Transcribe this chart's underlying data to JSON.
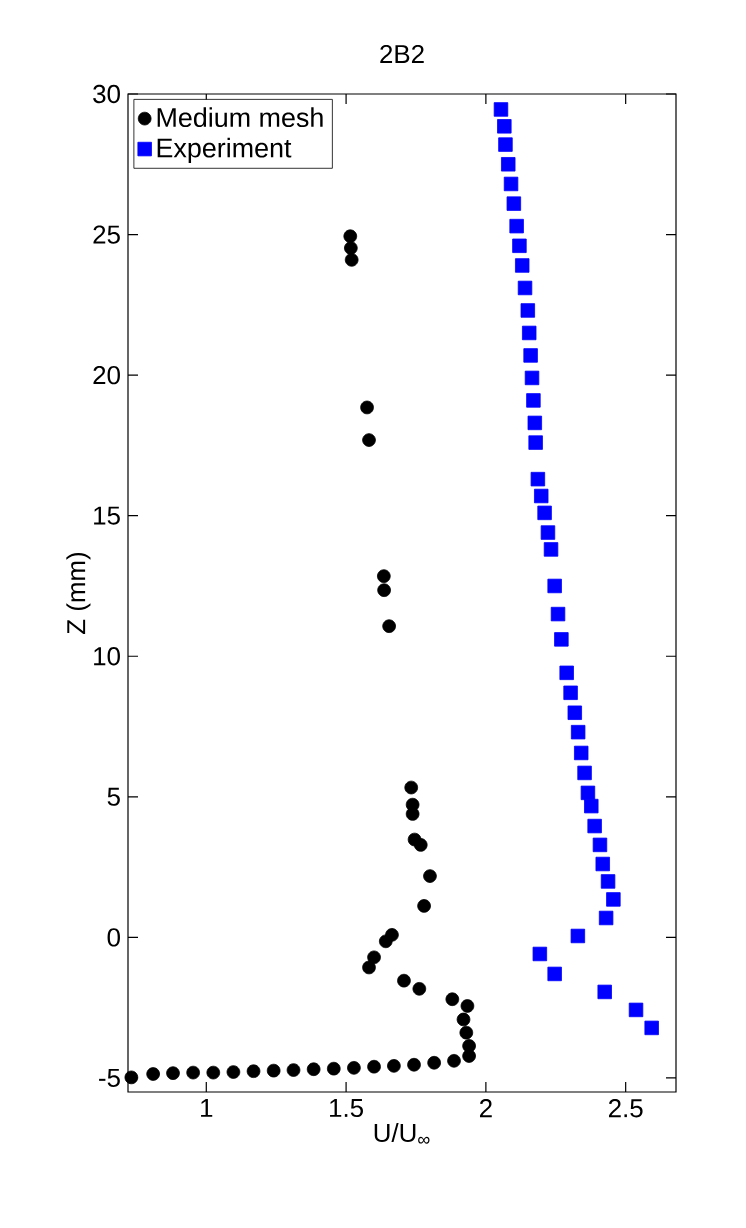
{
  "chart_data": {
    "type": "scatter",
    "title": "2B2",
    "xlabel": "U/U$_{∞}$",
    "ylabel": "Z (mm)",
    "xlim": [
      0.72,
      2.68
    ],
    "ylim": [
      -5.5,
      30
    ],
    "xticks": [
      1,
      1.5,
      2,
      2.5
    ],
    "yticks": [
      -5,
      0,
      5,
      10,
      15,
      20,
      25,
      30
    ],
    "grid": false,
    "legend": "top left",
    "series": [
      {
        "name": "Medium mesh",
        "color": "#000000",
        "marker": "circle",
        "x": [
          1.515,
          1.517,
          1.52,
          1.575,
          1.582,
          1.635,
          1.636,
          1.654,
          1.733,
          1.738,
          1.738,
          1.745,
          1.767,
          1.8,
          1.779,
          1.664,
          1.642,
          1.6,
          1.582,
          1.707,
          1.762,
          1.88,
          1.934,
          1.92,
          1.93,
          1.94,
          1.94,
          1.886,
          1.815,
          1.743,
          1.671,
          1.6,
          1.528,
          1.456,
          1.384,
          1.312,
          1.241,
          1.169,
          1.097,
          1.025,
          0.953,
          0.881,
          0.81,
          0.732
        ],
        "values": [
          24.94,
          24.52,
          24.1,
          18.85,
          17.69,
          12.85,
          12.35,
          11.07,
          5.33,
          4.72,
          4.39,
          3.48,
          3.29,
          2.18,
          1.12,
          0.09,
          -0.14,
          -0.71,
          -1.07,
          -1.54,
          -1.83,
          -2.2,
          -2.44,
          -2.92,
          -3.39,
          -3.86,
          -4.22,
          -4.39,
          -4.46,
          -4.53,
          -4.57,
          -4.6,
          -4.64,
          -4.67,
          -4.69,
          -4.72,
          -4.74,
          -4.76,
          -4.79,
          -4.81,
          -4.81,
          -4.83,
          -4.86,
          -4.98
        ]
      },
      {
        "name": "Experiment",
        "color": "#0000ff",
        "marker": "square",
        "x": [
          2.054,
          2.066,
          2.07,
          2.08,
          2.09,
          2.1,
          2.11,
          2.12,
          2.13,
          2.14,
          2.15,
          2.155,
          2.16,
          2.165,
          2.17,
          2.175,
          2.178,
          2.186,
          2.198,
          2.21,
          2.222,
          2.233,
          2.246,
          2.258,
          2.27,
          2.289,
          2.303,
          2.318,
          2.33,
          2.341,
          2.353,
          2.365,
          2.377,
          2.389,
          2.408,
          2.418,
          2.437,
          2.456,
          2.43,
          2.329,
          2.193,
          2.246,
          2.425,
          2.537,
          2.593
        ],
        "values": [
          29.45,
          28.85,
          28.2,
          27.5,
          26.8,
          26.1,
          25.3,
          24.6,
          23.9,
          23.1,
          22.3,
          21.5,
          20.7,
          19.9,
          19.1,
          18.3,
          17.6,
          16.3,
          15.7,
          15.1,
          14.4,
          13.8,
          12.5,
          11.5,
          10.6,
          9.41,
          8.7,
          7.99,
          7.3,
          6.56,
          5.85,
          5.14,
          4.67,
          3.96,
          3.29,
          2.61,
          1.99,
          1.35,
          0.69,
          0.05,
          -0.59,
          -1.3,
          -1.94,
          -2.58,
          -3.22
        ]
      }
    ]
  }
}
